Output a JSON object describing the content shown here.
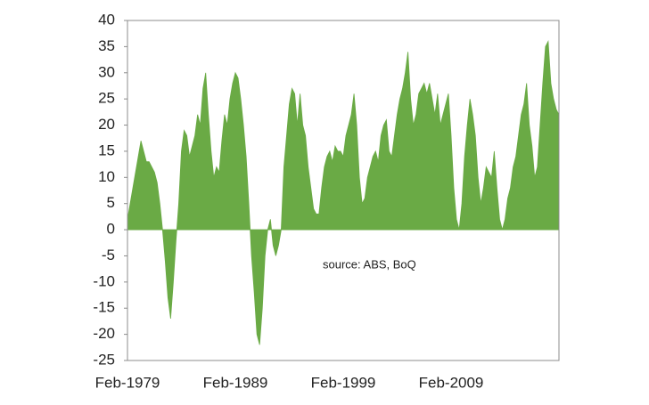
{
  "chart_data": {
    "type": "area",
    "annotation": "source:  ABS, BoQ",
    "categories": [
      "Feb-1979",
      null,
      null,
      null,
      null,
      null,
      null,
      null,
      null,
      null,
      null,
      null,
      null,
      null,
      null,
      null,
      null,
      null,
      null,
      null,
      null,
      null,
      null,
      null,
      null,
      null,
      null,
      null,
      null,
      null,
      null,
      null,
      null,
      null,
      null,
      null,
      null,
      null,
      null,
      null,
      "Feb-1989",
      null,
      null,
      null,
      null,
      null,
      null,
      null,
      null,
      null,
      null,
      null,
      null,
      null,
      null,
      null,
      null,
      null,
      null,
      null,
      null,
      null,
      null,
      null,
      null,
      null,
      null,
      null,
      null,
      null,
      null,
      null,
      null,
      null,
      null,
      null,
      null,
      null,
      null,
      null,
      "Feb-1999",
      null,
      null,
      null,
      null,
      null,
      null,
      null,
      null,
      null,
      null,
      null,
      null,
      null,
      null,
      null,
      null,
      null,
      null,
      null,
      null,
      null,
      null,
      null,
      null,
      null,
      null,
      null,
      null,
      null,
      null,
      null,
      null,
      null,
      null,
      null,
      null,
      null,
      null,
      null,
      "Feb-2009",
      null,
      null,
      null,
      null,
      null,
      null,
      null,
      null,
      null,
      null,
      null,
      null,
      null,
      null,
      null,
      null,
      null,
      null,
      null,
      null,
      null,
      null,
      null,
      null,
      null,
      null,
      null,
      null,
      null,
      null,
      null,
      null,
      null,
      null,
      null,
      null,
      null,
      null,
      null,
      null
    ],
    "values": [
      2,
      5,
      8,
      11,
      14,
      17,
      15,
      13,
      13,
      12,
      11,
      9,
      5,
      0,
      -6,
      -13,
      -17,
      -10,
      -2,
      5,
      15,
      19,
      18,
      14,
      16,
      18,
      22,
      20,
      27,
      30,
      22,
      15,
      10,
      12,
      11,
      17,
      22,
      20,
      25,
      28,
      30,
      29,
      25,
      20,
      14,
      5,
      -5,
      -12,
      -20,
      -22,
      -15,
      -5,
      0,
      2,
      -3,
      -5,
      -3,
      0,
      12,
      18,
      24,
      27,
      26,
      20,
      26,
      20,
      18,
      12,
      8,
      4,
      3,
      3,
      8,
      12,
      14,
      15,
      13,
      16,
      15,
      15,
      14,
      18,
      20,
      22,
      26,
      20,
      10,
      5,
      6,
      10,
      12,
      14,
      15,
      13,
      18,
      20,
      21,
      15,
      14,
      18,
      22,
      25,
      27,
      30,
      34,
      25,
      20,
      22,
      26,
      27,
      28,
      26,
      28,
      25,
      22,
      26,
      20,
      22,
      24,
      26,
      18,
      8,
      2,
      0,
      5,
      14,
      20,
      25,
      22,
      18,
      10,
      5,
      8,
      12,
      11,
      10,
      15,
      8,
      2,
      0,
      2,
      6,
      8,
      12,
      14,
      18,
      22,
      24,
      28,
      20,
      16,
      10,
      12,
      20,
      28,
      35,
      36,
      28,
      25,
      23,
      22
    ],
    "color": "#6aaa45",
    "ylim": [
      -25,
      40
    ],
    "yticks": [
      -25,
      -20,
      -15,
      -10,
      -5,
      0,
      5,
      10,
      15,
      20,
      25,
      30,
      35,
      40
    ],
    "grid": false
  }
}
